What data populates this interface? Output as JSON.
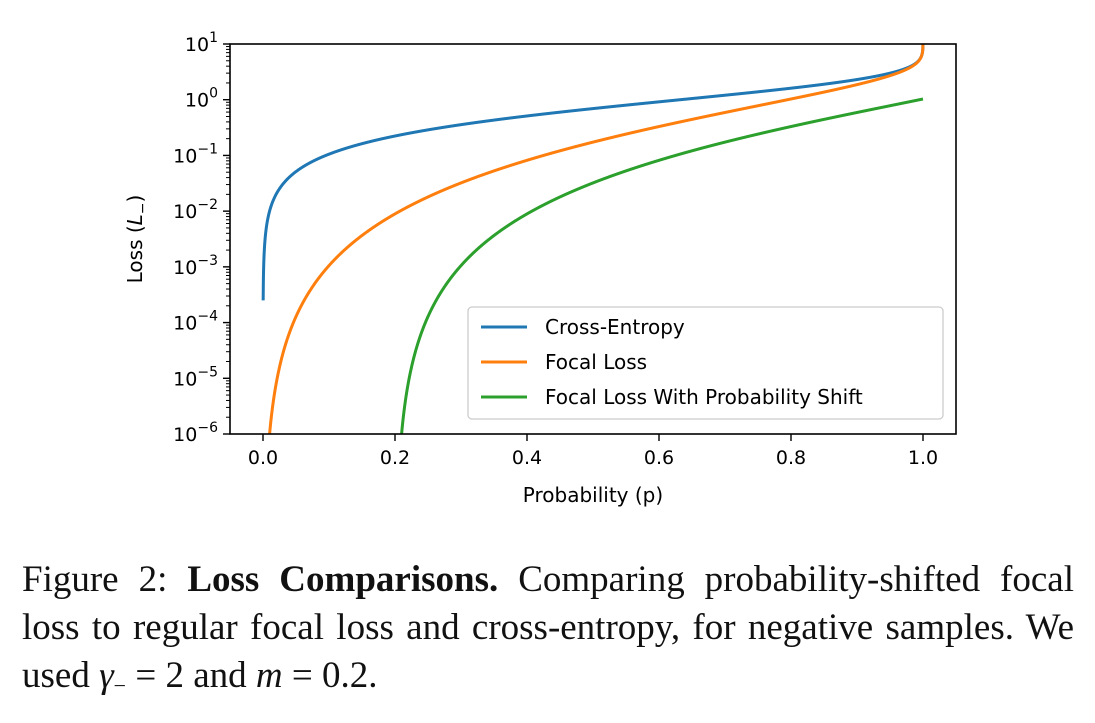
{
  "chart_data": {
    "type": "line",
    "xlabel": "Probability (p)",
    "ylabel_text": "Loss (",
    "ylabel_var": "L",
    "ylabel_sub": "−",
    "ylabel_close": ")",
    "xlim": [
      -0.05,
      1.05
    ],
    "xticks": [
      0.0,
      0.2,
      0.4,
      0.6,
      0.8,
      1.0
    ],
    "xtick_labels": [
      "0.0",
      "0.2",
      "0.4",
      "0.6",
      "0.8",
      "1.0"
    ],
    "yscale": "log",
    "ylim": [
      1e-06,
      10
    ],
    "yticks_exp": [
      1,
      0,
      -1,
      -2,
      -3,
      -4,
      -5,
      -6
    ],
    "ytick_base": "10",
    "ytick_sup": [
      "1",
      "0",
      "−1",
      "−2",
      "−3",
      "−4",
      "−5",
      "−6"
    ],
    "grid": false,
    "legend_placement": "lower-right",
    "gamma": 2,
    "m": 0.2,
    "series": [
      {
        "name": "Cross-Entropy",
        "color": "#1f77b4",
        "formula": "-log(1-p)"
      },
      {
        "name": "Focal Loss",
        "color": "#ff7f0e",
        "formula": "-p^2 log(1-p)"
      },
      {
        "name": "Focal Loss With Probability Shift",
        "color": "#2ca02c",
        "formula": "-(p-m)^2 log(1-(p-m))"
      }
    ]
  },
  "caption": {
    "prefix": "Figure 2: ",
    "bold": "Loss Comparisons.",
    "text1": " Comparing probability-shifted focal loss to regular focal loss and cross-entropy, for negative samples. We used ",
    "gamma_sym": "γ",
    "gamma_sub": "−",
    "eq1": " = 2",
    "and": " and ",
    "m_sym": "m",
    "eq2": " = 0.2."
  }
}
